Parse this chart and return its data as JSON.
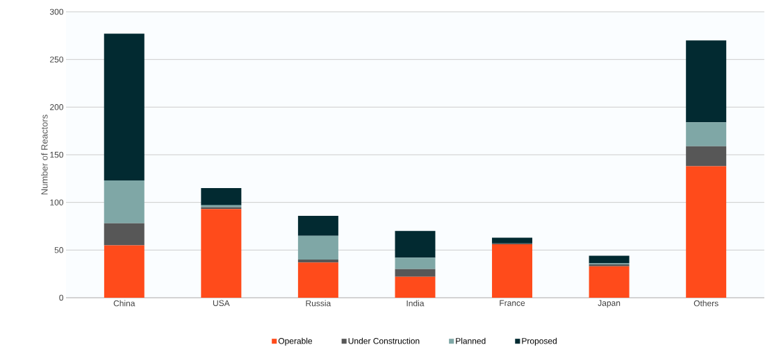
{
  "chart_data": {
    "type": "bar",
    "stacked": true,
    "ylabel": "Number of Reactors",
    "categories": [
      "China",
      "USA",
      "Russia",
      "India",
      "France",
      "Japan",
      "Others"
    ],
    "series": [
      {
        "name": "Operable",
        "color": "#ff4b1b",
        "values": [
          55,
          93,
          37,
          22,
          56,
          33,
          138
        ]
      },
      {
        "name": "Under Construction",
        "color": "#575757",
        "values": [
          23,
          2,
          3,
          8,
          1,
          2,
          21
        ]
      },
      {
        "name": "Planned",
        "color": "#7fa7a6",
        "values": [
          45,
          2,
          25,
          12,
          0,
          1,
          25
        ]
      },
      {
        "name": "Proposed",
        "color": "#022a31",
        "values": [
          154,
          18,
          21,
          28,
          6,
          8,
          86
        ]
      }
    ],
    "ylim": [
      0,
      300
    ],
    "yticks": [
      0,
      50,
      100,
      150,
      200,
      250,
      300
    ],
    "grid": "y",
    "legend": "bottom"
  }
}
